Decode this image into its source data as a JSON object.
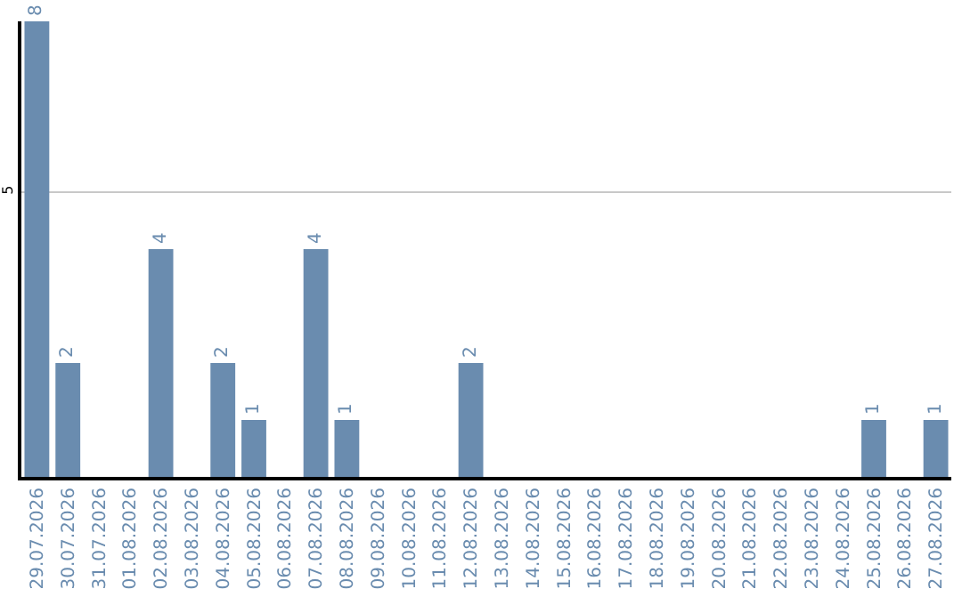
{
  "chart_data": {
    "type": "bar",
    "categories": [
      "29.07.2026",
      "30.07.2026",
      "31.07.2026",
      "01.08.2026",
      "02.08.2026",
      "03.08.2026",
      "04.08.2026",
      "05.08.2026",
      "06.08.2026",
      "07.08.2026",
      "08.08.2026",
      "09.08.2026",
      "10.08.2026",
      "11.08.2026",
      "12.08.2026",
      "13.08.2026",
      "14.08.2026",
      "15.08.2026",
      "16.08.2026",
      "17.08.2026",
      "18.08.2026",
      "19.08.2026",
      "20.08.2026",
      "21.08.2026",
      "22.08.2026",
      "23.08.2026",
      "24.08.2026",
      "25.08.2026",
      "26.08.2026",
      "27.08.2026"
    ],
    "values": [
      8,
      2,
      0,
      0,
      4,
      0,
      2,
      1,
      0,
      4,
      1,
      0,
      0,
      0,
      2,
      0,
      0,
      0,
      0,
      0,
      0,
      0,
      0,
      0,
      0,
      0,
      0,
      1,
      0,
      1
    ],
    "value_labels": [
      "8",
      "2",
      null,
      null,
      "4",
      null,
      "2",
      "1",
      null,
      "4",
      "1",
      null,
      null,
      null,
      "2",
      null,
      null,
      null,
      null,
      null,
      null,
      null,
      null,
      null,
      null,
      null,
      null,
      "1",
      null,
      "1"
    ],
    "color": "#6a8caf",
    "ylim": [
      0,
      8
    ],
    "yticks": [
      5
    ],
    "grid": "y"
  }
}
